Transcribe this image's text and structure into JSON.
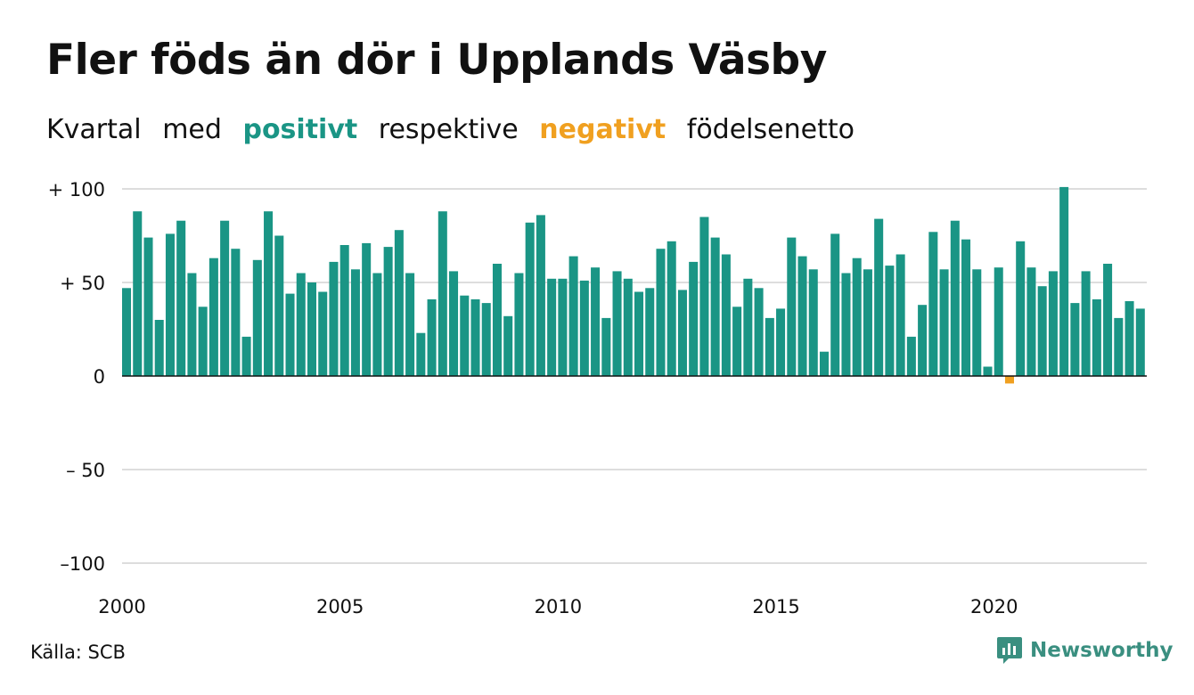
{
  "title": "Fler föds än dör i Upplands Väsby",
  "subtitle": {
    "part1": "Kvartal",
    "part2": "med",
    "positive_word": "positivt",
    "part3": "respektive",
    "negative_word": "negativt",
    "part4": "födelsenetto"
  },
  "source": "Källa: SCB",
  "brand": "Newsworthy",
  "colors": {
    "positive": "#1a9585",
    "negative": "#f0a020",
    "grid": "#dddddd",
    "brand": "#3a8f80"
  },
  "chart_data": {
    "type": "bar",
    "x_unit": "quarter",
    "start_year": 2000,
    "start_quarter": 1,
    "values": [
      47,
      88,
      74,
      30,
      76,
      83,
      55,
      37,
      63,
      83,
      68,
      21,
      62,
      88,
      75,
      44,
      55,
      50,
      45,
      61,
      70,
      57,
      71,
      55,
      69,
      78,
      55,
      23,
      41,
      88,
      56,
      43,
      41,
      39,
      60,
      32,
      55,
      82,
      86,
      52,
      52,
      64,
      51,
      58,
      31,
      56,
      52,
      45,
      47,
      68,
      72,
      46,
      61,
      85,
      74,
      65,
      37,
      52,
      47,
      31,
      36,
      74,
      64,
      57,
      13,
      76,
      55,
      63,
      57,
      84,
      59,
      65,
      21,
      38,
      77,
      57,
      83,
      73,
      57,
      5,
      58,
      -4,
      72,
      58,
      48,
      56,
      101,
      39,
      56,
      41,
      60,
      31,
      40,
      36
    ],
    "ylim": [
      -100,
      100
    ],
    "yticks": [
      100,
      50,
      0,
      -50,
      -100
    ],
    "ytick_labels": [
      "+ 100",
      "+  50",
      "0",
      "– 50",
      "–100"
    ],
    "xticks": [
      2000,
      2005,
      2010,
      2015,
      2020
    ],
    "xtick_labels": [
      "2000",
      "2005",
      "2010",
      "2015",
      "2020"
    ],
    "grid": true,
    "legend": "none"
  }
}
